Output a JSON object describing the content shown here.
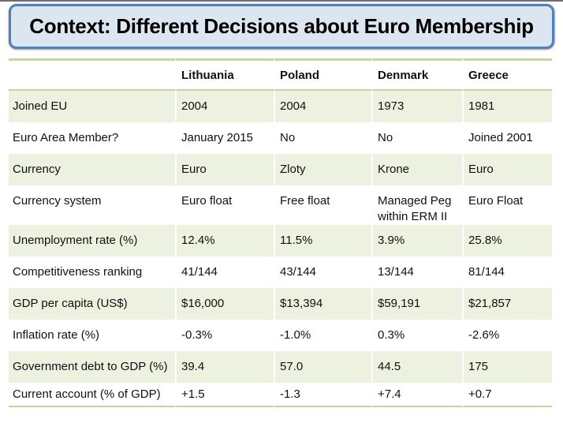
{
  "title": "Context: Different Decisions about Euro Membership",
  "table": {
    "columns": [
      "",
      "Lithuania",
      "Poland",
      "Denmark",
      "Greece"
    ],
    "rows": [
      {
        "label": "Joined EU",
        "values": [
          "2004",
          "2004",
          "1973",
          "1981"
        ]
      },
      {
        "label": "Euro Area Member?",
        "values": [
          "January 2015",
          "No",
          "No",
          "Joined 2001"
        ]
      },
      {
        "label": "Currency",
        "values": [
          "Euro",
          "Zloty",
          "Krone",
          "Euro"
        ]
      },
      {
        "label": "Currency system",
        "values": [
          "Euro float",
          "Free float",
          "Managed Peg within ERM II",
          "Euro Float"
        ]
      },
      {
        "label": "Unemployment rate (%)",
        "values": [
          "12.4%",
          "11.5%",
          "3.9%",
          "25.8%"
        ]
      },
      {
        "label": "Competitiveness ranking",
        "values": [
          "41/144",
          "43/144",
          "13/144",
          "81/144"
        ]
      },
      {
        "label": "GDP per capita (US$)",
        "values": [
          "$16,000",
          "$13,394",
          "$59,191",
          "$21,857"
        ]
      },
      {
        "label": "Inflation rate (%)",
        "values": [
          "-0.3%",
          "-1.0%",
          "0.3%",
          "-2.6%"
        ]
      },
      {
        "label": "Government debt to GDP (%)",
        "values": [
          "39.4",
          "57.0",
          "44.5",
          "175"
        ]
      },
      {
        "label": "Current account (% of GDP)",
        "values": [
          "+1.5",
          "-1.3",
          "+7.4",
          "+0.7"
        ]
      }
    ]
  },
  "colors": {
    "title_fill": "#DCE6F1",
    "title_border": "#4F81BD",
    "row_stripe": "#ECF1E0",
    "table_line": "#C3D69B",
    "text": "#111111"
  }
}
